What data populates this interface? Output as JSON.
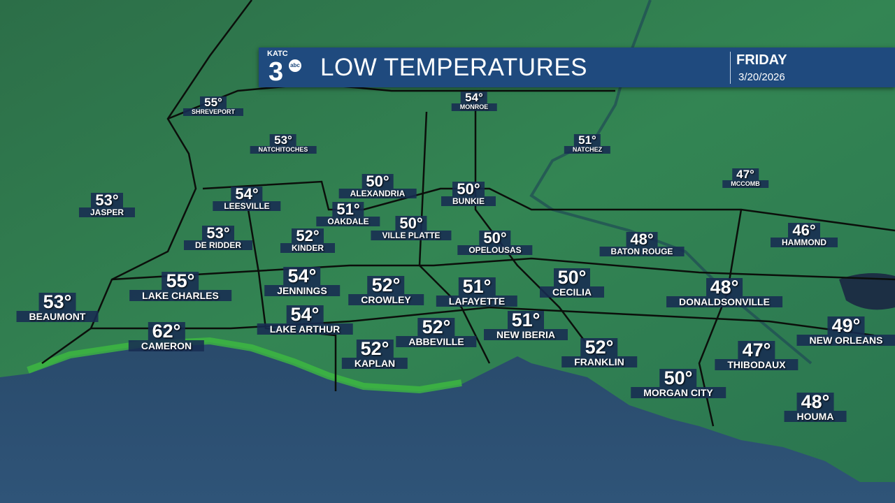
{
  "header": {
    "logo_text": "KATC 3 abc",
    "title": "LOW TEMPERATURES",
    "day": "FRIDAY",
    "date": "3/20/2026"
  },
  "colors": {
    "land": "#2f7a4f",
    "water": "#24425f",
    "banner": "#1f4a7e",
    "label_bg": "#182c52"
  },
  "cities": [
    {
      "name": "SHREVEPORT",
      "temp": "55°"
    },
    {
      "name": "MONROE",
      "temp": "54°"
    },
    {
      "name": "NATCHITOCHES",
      "temp": "53°"
    },
    {
      "name": "NATCHEZ",
      "temp": "51°"
    },
    {
      "name": "MCCOMB",
      "temp": "47°"
    },
    {
      "name": "ALEXANDRIA",
      "temp": "50°"
    },
    {
      "name": "BUNKIE",
      "temp": "50°"
    },
    {
      "name": "JASPER",
      "temp": "53°"
    },
    {
      "name": "LEESVILLE",
      "temp": "54°"
    },
    {
      "name": "OAKDALE",
      "temp": "51°"
    },
    {
      "name": "VILLE PLATTE",
      "temp": "50°"
    },
    {
      "name": "DE RIDDER",
      "temp": "53°"
    },
    {
      "name": "KINDER",
      "temp": "52°"
    },
    {
      "name": "OPELOUSAS",
      "temp": "50°"
    },
    {
      "name": "BATON ROUGE",
      "temp": "48°"
    },
    {
      "name": "HAMMOND",
      "temp": "46°"
    },
    {
      "name": "LAKE CHARLES",
      "temp": "55°"
    },
    {
      "name": "JENNINGS",
      "temp": "54°"
    },
    {
      "name": "CROWLEY",
      "temp": "52°"
    },
    {
      "name": "LAFAYETTE",
      "temp": "51°"
    },
    {
      "name": "CECILIA",
      "temp": "50°"
    },
    {
      "name": "DONALDSONVILLE",
      "temp": "48°"
    },
    {
      "name": "BEAUMONT",
      "temp": "53°"
    },
    {
      "name": "LAKE ARTHUR",
      "temp": "54°"
    },
    {
      "name": "NEW ORLEANS",
      "temp": "49°"
    },
    {
      "name": "CAMERON",
      "temp": "62°"
    },
    {
      "name": "ABBEVILLE",
      "temp": "52°"
    },
    {
      "name": "NEW IBERIA",
      "temp": "51°"
    },
    {
      "name": "KAPLAN",
      "temp": "52°"
    },
    {
      "name": "FRANKLIN",
      "temp": "52°"
    },
    {
      "name": "THIBODAUX",
      "temp": "47°"
    },
    {
      "name": "MORGAN CITY",
      "temp": "50°"
    },
    {
      "name": "HOUMA",
      "temp": "48°"
    }
  ]
}
